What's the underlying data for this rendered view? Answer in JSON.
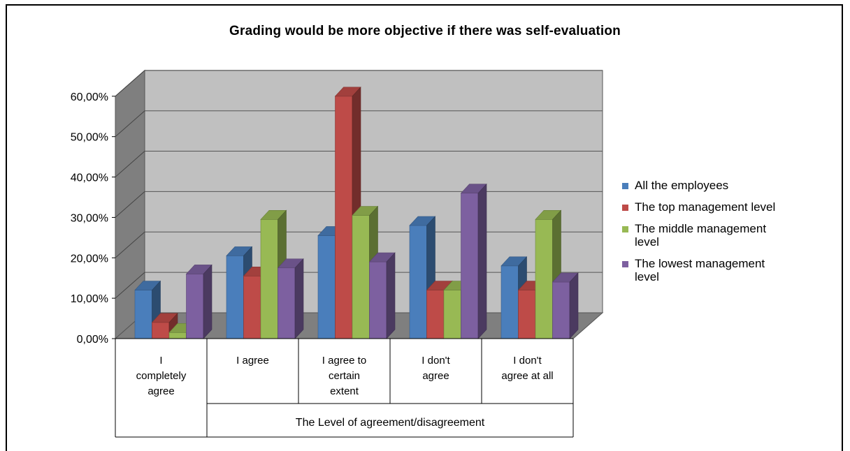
{
  "chart_data": {
    "type": "bar",
    "title": "Grading would be more objective if there was self-evaluation",
    "xlabel": "The Level of agreement/disagreement",
    "ylabel": "",
    "ylim": [
      0,
      0.6
    ],
    "yticks": [
      "0,00%",
      "10,00%",
      "20,00%",
      "30,00%",
      "40,00%",
      "50,00%",
      "60,00%"
    ],
    "categories": [
      [
        "I",
        "completely",
        "agree"
      ],
      [
        "I agree"
      ],
      [
        "I agree to",
        "certain",
        "extent"
      ],
      [
        "I don't",
        "agree"
      ],
      [
        "I don't",
        "agree at all"
      ]
    ],
    "series": [
      {
        "name": "All the employees",
        "color": "#4a7ebb",
        "values": [
          0.12,
          0.205,
          0.255,
          0.28,
          0.18
        ]
      },
      {
        "name": "The top management level",
        "color": "#be4b48",
        "values": [
          0.04,
          0.155,
          0.6,
          0.12,
          0.12
        ]
      },
      {
        "name": "The middle management level",
        "color": "#98b954",
        "values": [
          0.015,
          0.295,
          0.305,
          0.12,
          0.295
        ]
      },
      {
        "name": "The lowest management level",
        "color": "#7d60a0",
        "values": [
          0.16,
          0.175,
          0.19,
          0.36,
          0.14
        ]
      }
    ],
    "legend_position": "right",
    "grid": true
  },
  "legend": {
    "items": [
      {
        "lines": [
          "All the employees"
        ],
        "color": "#4a7ebb"
      },
      {
        "lines": [
          "The top management level"
        ],
        "color": "#be4b48"
      },
      {
        "lines": [
          "The middle management",
          "level"
        ],
        "color": "#98b954"
      },
      {
        "lines": [
          "The lowest management",
          "level"
        ],
        "color": "#7d60a0"
      }
    ]
  }
}
